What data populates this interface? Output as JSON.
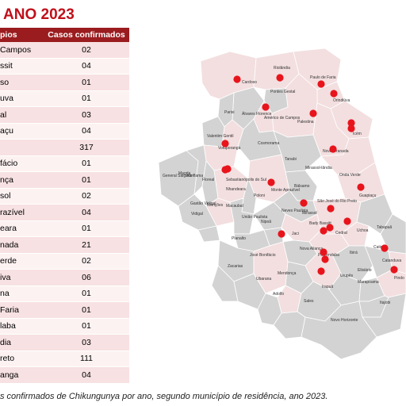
{
  "title": "ANO 2023",
  "table": {
    "header": [
      "pios",
      "Casos confirmados"
    ],
    "rows": [
      [
        "Campos",
        "02"
      ],
      [
        "ssit",
        "04"
      ],
      [
        "so",
        "01"
      ],
      [
        "uva",
        "01"
      ],
      [
        "al",
        "03"
      ],
      [
        "açu",
        "04"
      ],
      [
        "",
        "317"
      ],
      [
        "fácio",
        "01"
      ],
      [
        "nça",
        "01"
      ],
      [
        "sol",
        "02"
      ],
      [
        "razível",
        "04"
      ],
      [
        "eara",
        "01"
      ],
      [
        "nada",
        "21"
      ],
      [
        "erde",
        "02"
      ],
      [
        "iva",
        "06"
      ],
      [
        "na",
        "01"
      ],
      [
        "Faria",
        "01"
      ],
      [
        "laba",
        "01"
      ],
      [
        "dia",
        "03"
      ],
      [
        "reto",
        "111"
      ],
      [
        "anga",
        "04"
      ]
    ]
  },
  "caption": "s confirmados de Chikungunya por ano, segundo município de residência, ano 2023.",
  "colors": {
    "highlight_fill": "#f3dfe0",
    "default_fill": "#d3d3d3",
    "case_marker": "#e8141c",
    "header_bg": "#9b1c1f"
  },
  "map_labels": {
    "cardoso": "Cardoso",
    "riolandia": "Riolândia",
    "paulo_de_faria": "Paulo de Faria",
    "pontes_gestal": "Pontes Gestal",
    "orindiuva": "Orindiúva",
    "paris": "Parisi",
    "alvares_florence": "Álvares Florence",
    "americo_de_campos": "Américo de Campos",
    "palestina": "Palestina",
    "icem": "Icém",
    "valentim_gentil": "Valentim Gentil",
    "cosmorama": "Cosmorama",
    "nova_granada": "Nova Granada",
    "votuporanga": "Votuporanga",
    "general_salgado": "General Salgado",
    "auriflama": "Auriflama",
    "floreal": "Floreal",
    "sebastianopolis": "Sebastianópolis do Sul",
    "tanabi": "Tanabi",
    "mirassolandia": "Mirassol-lândia",
    "onda_verde": "Onda Verde",
    "monte_aprazivel": "Monte Aprazível",
    "poloni": "Poloni",
    "bálsamo": "Bálsamo",
    "guapiacu": "Guapiaçu",
    "nhandeara": "Nhandeara",
    "gastao_vidigal": "Gastão Vidigal",
    "macaubal": "Macaubal",
    "neves_paulista": "Neves Paulista",
    "mirassol": "Mirassol",
    "sao_jose": "São José do Rio Preto",
    "magda": "Magda",
    "moncoes": "Monções",
    "uniao_paulista": "União Paulista",
    "nipoa": "Nipoã",
    "bady_bassitt": "Bady Bassitt",
    "cedral": "Cedral",
    "uchoa": "Uchoa",
    "tabapua": "Tabapuã",
    "planalto": "Planalto",
    "jaci": "Jaci",
    "nova_alianca": "Nova Aliança",
    "potirendaba": "Potirendaba",
    "ibira": "Ibirá",
    "catigua": "Catiguá",
    "jose_bonifacio": "José Bonifácio",
    "zacarias": "Zacarias",
    "ubarana": "Ubarana",
    "mendonca": "Mendonça",
    "urupes": "Urupês",
    "elisiario": "Elisiário",
    "catanduva": "Catanduva",
    "pindorama": "Pindo",
    "irapua": "Irapuã",
    "marapoama": "Marapoama",
    "itajobi": "Itajobi",
    "adolfo": "Adolfo",
    "sales": "Sales",
    "novo_horizonte": "Novo Horizonte",
    "vidigal": "Vidigal"
  }
}
